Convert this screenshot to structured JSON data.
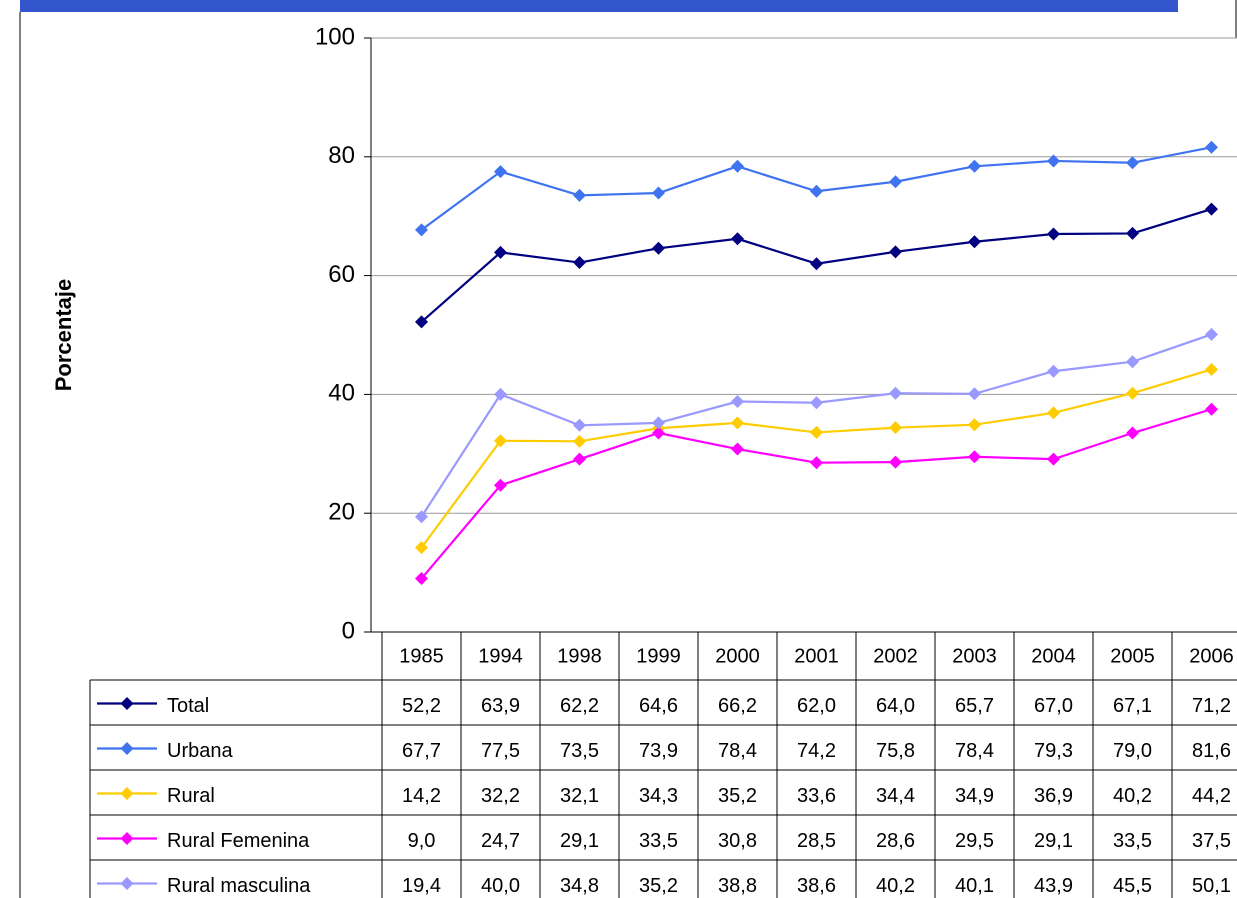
{
  "chart_data": {
    "type": "line",
    "y_label": "Porcentaje",
    "categories": [
      "1985",
      "1994",
      "1998",
      "1999",
      "2000",
      "2001",
      "2002",
      "2003",
      "2004",
      "2005",
      "2006"
    ],
    "series": [
      {
        "name": "Total",
        "color": "#000080",
        "values": [
          52.2,
          63.9,
          62.2,
          64.6,
          66.2,
          62.0,
          64.0,
          65.7,
          67.0,
          67.1,
          71.2
        ],
        "value_labels": [
          "52,2",
          "63,9",
          "62,2",
          "64,6",
          "66,2",
          "62,0",
          "64,0",
          "65,7",
          "67,0",
          "67,1",
          "71,2"
        ]
      },
      {
        "name": "Urbana",
        "color": "#3f73f0",
        "values": [
          67.7,
          77.5,
          73.5,
          73.9,
          78.4,
          74.2,
          75.8,
          78.4,
          79.3,
          79.0,
          81.6
        ],
        "value_labels": [
          "67,7",
          "77,5",
          "73,5",
          "73,9",
          "78,4",
          "74,2",
          "75,8",
          "78,4",
          "79,3",
          "79,0",
          "81,6"
        ]
      },
      {
        "name": "Rural",
        "color": "#ffcc00",
        "values": [
          14.2,
          32.2,
          32.1,
          34.3,
          35.2,
          33.6,
          34.4,
          34.9,
          36.9,
          40.2,
          44.2
        ],
        "value_labels": [
          "14,2",
          "32,2",
          "32,1",
          "34,3",
          "35,2",
          "33,6",
          "34,4",
          "34,9",
          "36,9",
          "40,2",
          "44,2"
        ]
      },
      {
        "name": "Rural Femenina",
        "color": "#ff00ff",
        "values": [
          9.0,
          24.7,
          29.1,
          33.5,
          30.8,
          28.5,
          28.6,
          29.5,
          29.1,
          33.5,
          37.5
        ],
        "value_labels": [
          "9,0",
          "24,7",
          "29,1",
          "33,5",
          "30,8",
          "28,5",
          "28,6",
          "29,5",
          "29,1",
          "33,5",
          "37,5"
        ]
      },
      {
        "name": "Rural masculina",
        "color": "#9999ff",
        "values": [
          19.4,
          40.0,
          34.8,
          35.2,
          38.8,
          38.6,
          40.2,
          40.1,
          43.9,
          45.5,
          50.1
        ],
        "value_labels": [
          "19,4",
          "40,0",
          "34,8",
          "35,2",
          "38,8",
          "38,6",
          "40,2",
          "40,1",
          "43,9",
          "45,5",
          "50,1"
        ]
      }
    ],
    "ylim": [
      0,
      100
    ],
    "yticks": [
      0,
      20,
      40,
      60,
      80,
      100
    ],
    "grid": true
  }
}
